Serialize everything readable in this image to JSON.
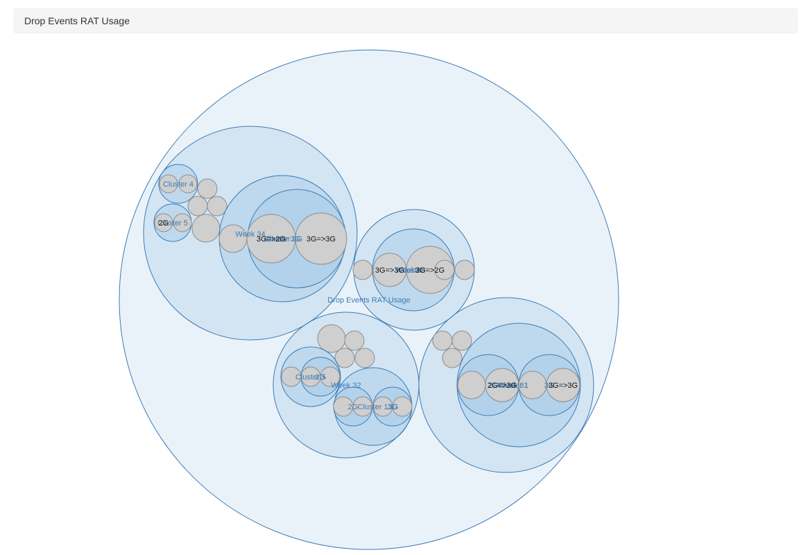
{
  "panel": {
    "title": "Drop Events RAT Usage"
  },
  "colors": {
    "stroke": "#3b7bb5",
    "node_fill": "#aacde8",
    "leaf_fill": "#cfcfcf",
    "leaf_stroke": "#8c8c8c",
    "label": "#3b7bb5",
    "leaf_label": "#111111"
  },
  "chart_data": {
    "type": "circle-packing",
    "title": "Drop Events RAT Usage",
    "root": {
      "name": "Drop Events RAT Usage",
      "children": [
        {
          "name": "Week 34",
          "children": [
            {
              "name": "Cluster 4",
              "children": [
                {
                  "name": "",
                  "value": 1
                },
                {
                  "name": "",
                  "value": 1
                }
              ]
            },
            {
              "name": "Cluster 5",
              "children": [
                {
                  "name": "2G",
                  "value": 1
                },
                {
                  "name": "",
                  "value": 1
                }
              ]
            },
            {
              "name": "",
              "value": 1
            },
            {
              "name": "",
              "value": 1
            },
            {
              "name": "",
              "value": 1
            },
            {
              "name": "",
              "value": 2
            },
            {
              "name": "Cluster 3G",
              "children": [
                {
                  "name": "",
                  "value": 2
                },
                {
                  "name": "Cluster 3G",
                  "children": [
                    {
                      "name": "3G=>2G",
                      "value": 5
                    },
                    {
                      "name": "3G=>3G",
                      "value": 6
                    }
                  ]
                }
              ]
            }
          ]
        },
        {
          "name": "Week 33",
          "children": [
            {
              "name": "",
              "value": 1
            },
            {
              "name": "",
              "value": 1
            },
            {
              "name": "Cluster",
              "children": [
                {
                  "name": "3G=>3G",
                  "value": 2
                },
                {
                  "name": "3G=>2G",
                  "value": 4
                },
                {
                  "name": "",
                  "value": 1
                }
              ]
            }
          ]
        },
        {
          "name": "Week 32",
          "children": [
            {
              "name": "",
              "value": 2
            },
            {
              "name": "",
              "value": 1
            },
            {
              "name": "",
              "value": 1
            },
            {
              "name": "",
              "value": 1
            },
            {
              "name": "Cluster 5",
              "children": [
                {
                  "name": "",
                  "value": 1
                },
                {
                  "name": "2G",
                  "children": [
                    {
                      "name": "",
                      "value": 1
                    },
                    {
                      "name": "",
                      "value": 1
                    }
                  ]
                }
              ]
            },
            {
              "name": "Cluster 13G",
              "children": [
                {
                  "name": "2G",
                  "children": [
                    {
                      "name": "",
                      "value": 1
                    },
                    {
                      "name": "",
                      "value": 1
                    }
                  ]
                },
                {
                  "name": "3G",
                  "children": [
                    {
                      "name": "",
                      "value": 1
                    },
                    {
                      "name": "",
                      "value": 1
                    }
                  ]
                }
              ]
            }
          ]
        },
        {
          "name": "Week 31",
          "children": [
            {
              "name": "",
              "value": 1
            },
            {
              "name": "",
              "value": 1
            },
            {
              "name": "",
              "value": 1
            },
            {
              "name": "Cluster 1",
              "children": [
                {
                  "name": "2G",
                  "children": [
                    {
                      "name": "",
                      "value": 2
                    },
                    {
                      "name": "2G=>3G",
                      "value": 3
                    }
                  ]
                },
                {
                  "name": "3G",
                  "children": [
                    {
                      "name": "",
                      "value": 2
                    },
                    {
                      "name": "3G=>3G",
                      "value": 3
                    }
                  ]
                }
              ]
            }
          ]
        }
      ]
    }
  }
}
